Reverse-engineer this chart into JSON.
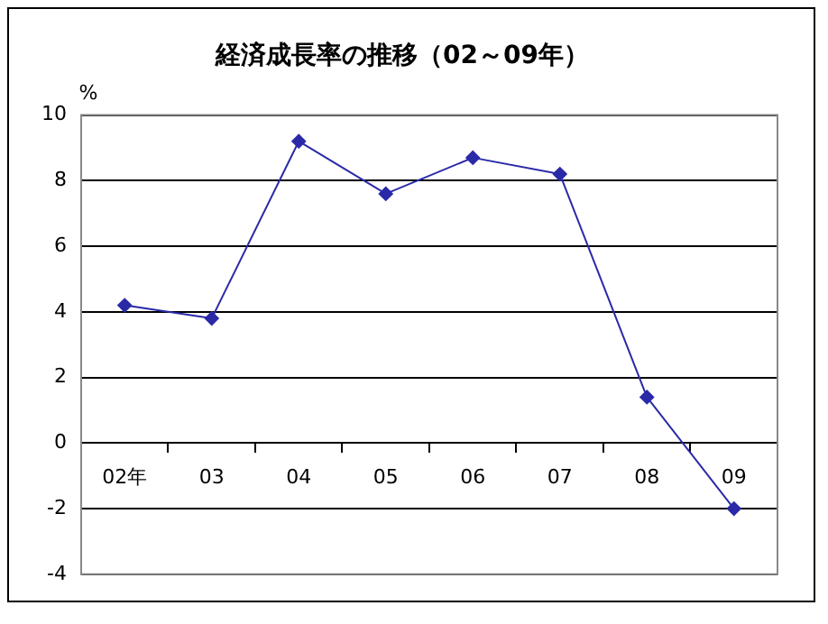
{
  "chart_data": {
    "type": "line",
    "title": "経済成長率の推移（02～09年）",
    "ylabel": "%",
    "categories": [
      "02年",
      "03",
      "04",
      "05",
      "06",
      "07",
      "08",
      "09"
    ],
    "series": [
      {
        "color": "#2a2aa8",
        "values": [
          4.2,
          3.8,
          9.2,
          7.6,
          8.7,
          8.2,
          1.4,
          -2.0
        ]
      }
    ],
    "ylim": [
      -4,
      10
    ],
    "yticks": [
      -4,
      -2,
      0,
      2,
      4,
      6,
      8,
      10
    ],
    "grid": "y",
    "legend": false,
    "marker": "diamond",
    "line_style": "solid"
  }
}
